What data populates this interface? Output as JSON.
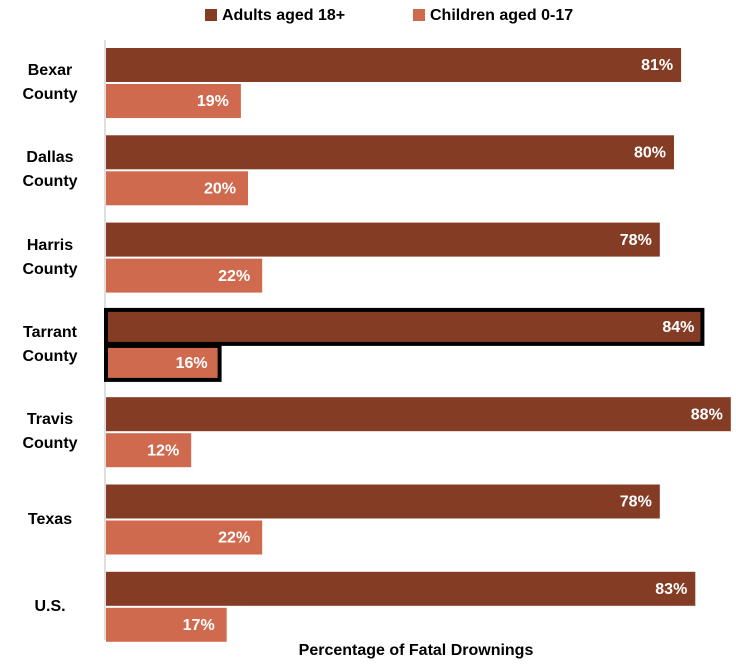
{
  "chart_data": {
    "type": "bar",
    "orientation": "horizontal",
    "x_label": "Percentage of Fatal Drownings",
    "categories": [
      "Bexar County",
      "Dallas County",
      "Harris County",
      "Tarrant County",
      "Travis County",
      "Texas",
      "U.S."
    ],
    "series": [
      {
        "name": "Adults aged 18+",
        "color": "#843c24",
        "values": [
          81,
          80,
          78,
          84,
          88,
          78,
          83
        ],
        "value_labels": [
          "81%",
          "80%",
          "78%",
          "84%",
          "88%",
          "78%",
          "83%"
        ]
      },
      {
        "name": "Children aged 0-17",
        "color": "#d06a4e",
        "values": [
          19,
          20,
          22,
          16,
          12,
          22,
          17
        ],
        "value_labels": [
          "19%",
          "20%",
          "22%",
          "16%",
          "12%",
          "22%",
          "17%"
        ]
      }
    ],
    "highlight": "Tarrant County"
  }
}
